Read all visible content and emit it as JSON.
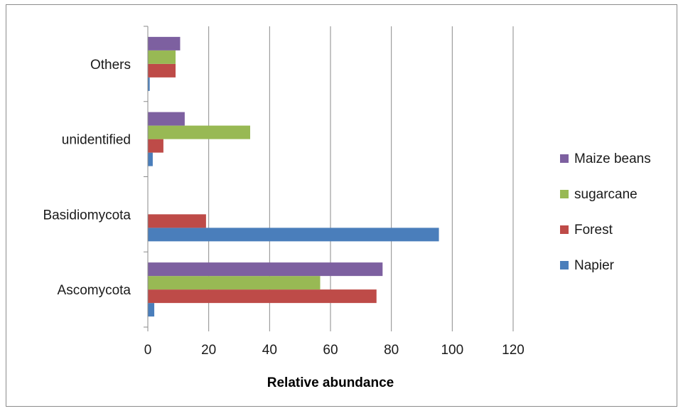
{
  "chart_data": {
    "type": "bar",
    "orientation": "horizontal",
    "title": "",
    "xlabel": "Relative abundance",
    "ylabel": "",
    "xlim": [
      0,
      120
    ],
    "x_ticks": [
      0,
      20,
      40,
      60,
      80,
      100,
      120
    ],
    "grid": "vertical major gridlines",
    "legend_position": "right",
    "categories": [
      "Ascomycota",
      "Basidiomycota",
      "unidentified",
      "Others"
    ],
    "series": [
      {
        "name": "Napier",
        "color": "#4a7ebb",
        "values": [
          2,
          95.5,
          1.5,
          0.5
        ]
      },
      {
        "name": "Forest",
        "color": "#be4b48",
        "values": [
          75,
          19,
          5,
          9
        ]
      },
      {
        "name": "sugarcane",
        "color": "#98b954",
        "values": [
          56.5,
          0,
          33.5,
          9
        ]
      },
      {
        "name": "Maize beans",
        "color": "#7d60a0",
        "values": [
          77,
          0,
          12,
          10.5
        ]
      }
    ],
    "legend_order": [
      "Maize beans",
      "sugarcane",
      "Forest",
      "Napier"
    ]
  }
}
